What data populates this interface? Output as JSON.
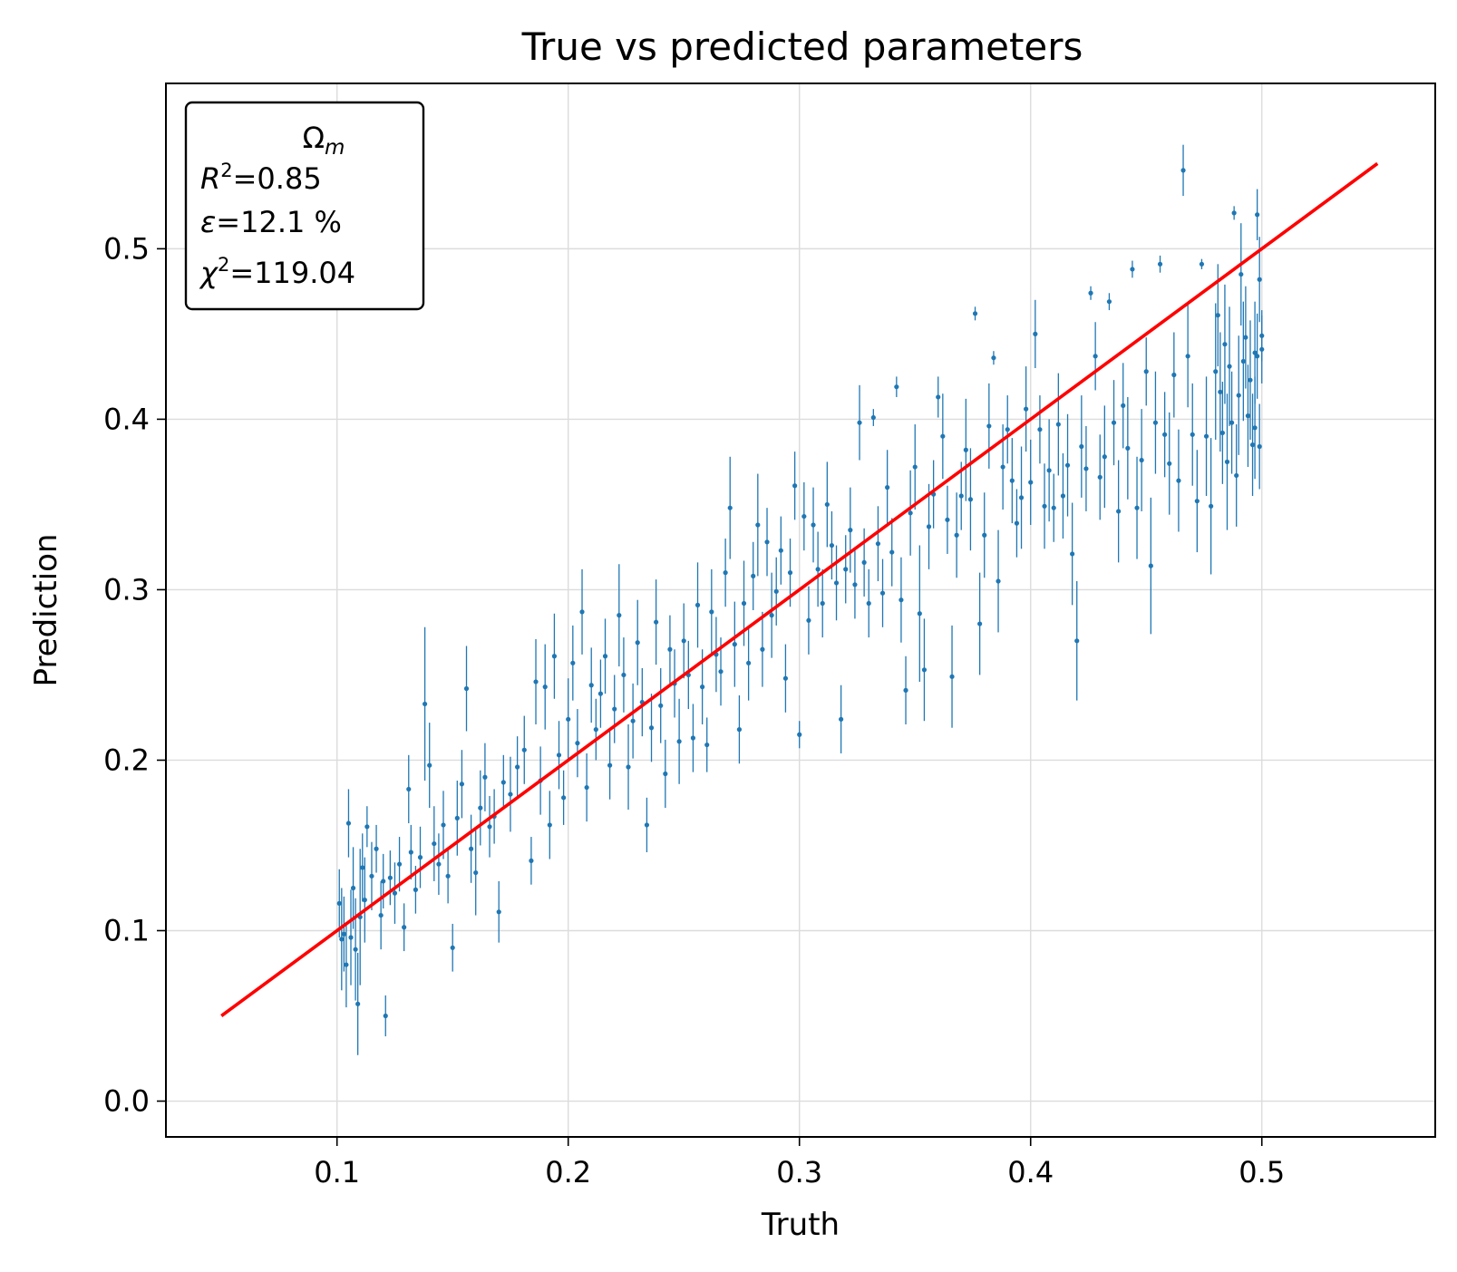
{
  "chart_data": {
    "type": "scatter",
    "title": "True vs predicted parameters",
    "xlabel": "Truth",
    "ylabel": "Prediction",
    "xlim": [
      0.026,
      0.575
    ],
    "ylim": [
      -0.021,
      0.597
    ],
    "xticks": [
      0.1,
      0.2,
      0.3,
      0.4,
      0.5
    ],
    "xtick_labels": [
      "0.1",
      "0.2",
      "0.3",
      "0.4",
      "0.5"
    ],
    "yticks": [
      0.0,
      0.1,
      0.2,
      0.3,
      0.4,
      0.5
    ],
    "ytick_labels": [
      "0.0",
      "0.1",
      "0.2",
      "0.3",
      "0.4",
      "0.5"
    ],
    "grid": true,
    "colors": {
      "points": "#1f77b4",
      "identity_line": "#ff0000"
    },
    "identity_line": {
      "x": [
        0.05,
        0.55
      ],
      "y": [
        0.05,
        0.55
      ]
    },
    "stats_box": {
      "position": "top-left",
      "parameter": "Ω",
      "parameter_sub": "m",
      "r2_label": "R",
      "r2_value": "=0.85",
      "eps_label": "ε",
      "eps_value": "=12.1 %",
      "chi2_label": "χ",
      "chi2_value": "=119.04",
      "superscript": "2"
    },
    "points": [
      [
        0.101,
        0.116,
        0.02
      ],
      [
        0.102,
        0.095,
        0.03
      ],
      [
        0.103,
        0.098,
        0.022
      ],
      [
        0.104,
        0.08,
        0.025
      ],
      [
        0.105,
        0.163,
        0.02
      ],
      [
        0.106,
        0.096,
        0.028
      ],
      [
        0.107,
        0.125,
        0.024
      ],
      [
        0.108,
        0.089,
        0.03
      ],
      [
        0.109,
        0.057,
        0.03
      ],
      [
        0.11,
        0.108,
        0.04
      ],
      [
        0.111,
        0.137,
        0.02
      ],
      [
        0.112,
        0.118,
        0.025
      ],
      [
        0.113,
        0.161,
        0.012
      ],
      [
        0.115,
        0.132,
        0.02
      ],
      [
        0.117,
        0.148,
        0.014
      ],
      [
        0.119,
        0.109,
        0.02
      ],
      [
        0.12,
        0.129,
        0.016
      ],
      [
        0.121,
        0.05,
        0.012
      ],
      [
        0.123,
        0.131,
        0.016
      ],
      [
        0.125,
        0.122,
        0.018
      ],
      [
        0.127,
        0.139,
        0.016
      ],
      [
        0.129,
        0.102,
        0.014
      ],
      [
        0.131,
        0.183,
        0.02
      ],
      [
        0.132,
        0.146,
        0.016
      ],
      [
        0.134,
        0.124,
        0.014
      ],
      [
        0.136,
        0.143,
        0.018
      ],
      [
        0.138,
        0.233,
        0.045
      ],
      [
        0.14,
        0.197,
        0.025
      ],
      [
        0.142,
        0.151,
        0.022
      ],
      [
        0.144,
        0.139,
        0.018
      ],
      [
        0.146,
        0.162,
        0.02
      ],
      [
        0.148,
        0.132,
        0.016
      ],
      [
        0.15,
        0.09,
        0.014
      ],
      [
        0.152,
        0.166,
        0.022
      ],
      [
        0.154,
        0.186,
        0.02
      ],
      [
        0.156,
        0.242,
        0.025
      ],
      [
        0.158,
        0.148,
        0.02
      ],
      [
        0.16,
        0.134,
        0.025
      ],
      [
        0.162,
        0.172,
        0.022
      ],
      [
        0.164,
        0.19,
        0.02
      ],
      [
        0.166,
        0.161,
        0.018
      ],
      [
        0.168,
        0.167,
        0.016
      ],
      [
        0.17,
        0.111,
        0.018
      ],
      [
        0.172,
        0.187,
        0.016
      ],
      [
        0.175,
        0.18,
        0.022
      ],
      [
        0.178,
        0.196,
        0.018
      ],
      [
        0.181,
        0.206,
        0.02
      ],
      [
        0.184,
        0.141,
        0.014
      ],
      [
        0.186,
        0.246,
        0.025
      ],
      [
        0.188,
        0.188,
        0.02
      ],
      [
        0.19,
        0.243,
        0.025
      ],
      [
        0.192,
        0.162,
        0.02
      ],
      [
        0.194,
        0.261,
        0.025
      ],
      [
        0.196,
        0.203,
        0.02
      ],
      [
        0.198,
        0.178,
        0.016
      ],
      [
        0.2,
        0.224,
        0.024
      ],
      [
        0.202,
        0.257,
        0.022
      ],
      [
        0.204,
        0.21,
        0.02
      ],
      [
        0.206,
        0.287,
        0.025
      ],
      [
        0.208,
        0.184,
        0.02
      ],
      [
        0.21,
        0.244,
        0.022
      ],
      [
        0.212,
        0.218,
        0.018
      ],
      [
        0.214,
        0.239,
        0.02
      ],
      [
        0.216,
        0.261,
        0.022
      ],
      [
        0.218,
        0.197,
        0.02
      ],
      [
        0.22,
        0.23,
        0.02
      ],
      [
        0.222,
        0.285,
        0.03
      ],
      [
        0.224,
        0.25,
        0.022
      ],
      [
        0.226,
        0.196,
        0.025
      ],
      [
        0.228,
        0.223,
        0.022
      ],
      [
        0.23,
        0.269,
        0.025
      ],
      [
        0.232,
        0.234,
        0.02
      ],
      [
        0.234,
        0.162,
        0.016
      ],
      [
        0.236,
        0.219,
        0.02
      ],
      [
        0.238,
        0.281,
        0.025
      ],
      [
        0.24,
        0.232,
        0.022
      ],
      [
        0.242,
        0.192,
        0.02
      ],
      [
        0.244,
        0.265,
        0.02
      ],
      [
        0.246,
        0.245,
        0.02
      ],
      [
        0.248,
        0.211,
        0.025
      ],
      [
        0.25,
        0.27,
        0.022
      ],
      [
        0.252,
        0.25,
        0.02
      ],
      [
        0.254,
        0.213,
        0.02
      ],
      [
        0.256,
        0.291,
        0.025
      ],
      [
        0.258,
        0.243,
        0.022
      ],
      [
        0.26,
        0.209,
        0.016
      ],
      [
        0.262,
        0.287,
        0.025
      ],
      [
        0.264,
        0.262,
        0.022
      ],
      [
        0.266,
        0.252,
        0.02
      ],
      [
        0.268,
        0.31,
        0.02
      ],
      [
        0.27,
        0.348,
        0.03
      ],
      [
        0.272,
        0.268,
        0.025
      ],
      [
        0.274,
        0.218,
        0.02
      ],
      [
        0.276,
        0.292,
        0.025
      ],
      [
        0.278,
        0.257,
        0.022
      ],
      [
        0.28,
        0.308,
        0.02
      ],
      [
        0.282,
        0.338,
        0.03
      ],
      [
        0.284,
        0.265,
        0.022
      ],
      [
        0.286,
        0.328,
        0.02
      ],
      [
        0.288,
        0.285,
        0.025
      ],
      [
        0.29,
        0.299,
        0.02
      ],
      [
        0.292,
        0.323,
        0.02
      ],
      [
        0.294,
        0.248,
        0.02
      ],
      [
        0.296,
        0.31,
        0.02
      ],
      [
        0.298,
        0.361,
        0.02
      ],
      [
        0.3,
        0.215,
        0.008
      ],
      [
        0.302,
        0.343,
        0.02
      ],
      [
        0.304,
        0.282,
        0.02
      ],
      [
        0.306,
        0.338,
        0.022
      ],
      [
        0.308,
        0.312,
        0.022
      ],
      [
        0.31,
        0.292,
        0.02
      ],
      [
        0.312,
        0.35,
        0.025
      ],
      [
        0.314,
        0.326,
        0.02
      ],
      [
        0.316,
        0.304,
        0.022
      ],
      [
        0.318,
        0.224,
        0.02
      ],
      [
        0.32,
        0.312,
        0.02
      ],
      [
        0.322,
        0.335,
        0.025
      ],
      [
        0.324,
        0.303,
        0.02
      ],
      [
        0.326,
        0.398,
        0.022
      ],
      [
        0.328,
        0.316,
        0.02
      ],
      [
        0.33,
        0.292,
        0.02
      ],
      [
        0.332,
        0.401,
        0.005
      ],
      [
        0.334,
        0.327,
        0.022
      ],
      [
        0.336,
        0.298,
        0.02
      ],
      [
        0.338,
        0.36,
        0.022
      ],
      [
        0.34,
        0.322,
        0.02
      ],
      [
        0.342,
        0.419,
        0.006
      ],
      [
        0.344,
        0.294,
        0.025
      ],
      [
        0.346,
        0.241,
        0.02
      ],
      [
        0.348,
        0.345,
        0.025
      ],
      [
        0.35,
        0.372,
        0.025
      ],
      [
        0.352,
        0.286,
        0.04
      ],
      [
        0.354,
        0.253,
        0.03
      ],
      [
        0.356,
        0.337,
        0.025
      ],
      [
        0.358,
        0.356,
        0.02
      ],
      [
        0.36,
        0.413,
        0.012
      ],
      [
        0.362,
        0.39,
        0.025
      ],
      [
        0.364,
        0.341,
        0.02
      ],
      [
        0.366,
        0.249,
        0.03
      ],
      [
        0.368,
        0.332,
        0.025
      ],
      [
        0.37,
        0.355,
        0.02
      ],
      [
        0.372,
        0.382,
        0.03
      ],
      [
        0.374,
        0.353,
        0.03
      ],
      [
        0.376,
        0.462,
        0.004
      ],
      [
        0.378,
        0.28,
        0.03
      ],
      [
        0.38,
        0.332,
        0.025
      ],
      [
        0.382,
        0.396,
        0.025
      ],
      [
        0.384,
        0.436,
        0.004
      ],
      [
        0.386,
        0.305,
        0.03
      ],
      [
        0.388,
        0.372,
        0.025
      ],
      [
        0.39,
        0.394,
        0.02
      ],
      [
        0.392,
        0.364,
        0.025
      ],
      [
        0.394,
        0.339,
        0.02
      ],
      [
        0.396,
        0.354,
        0.03
      ],
      [
        0.398,
        0.406,
        0.025
      ],
      [
        0.4,
        0.363,
        0.025
      ],
      [
        0.402,
        0.45,
        0.02
      ],
      [
        0.404,
        0.394,
        0.02
      ],
      [
        0.406,
        0.349,
        0.025
      ],
      [
        0.408,
        0.37,
        0.03
      ],
      [
        0.41,
        0.348,
        0.02
      ],
      [
        0.412,
        0.397,
        0.03
      ],
      [
        0.414,
        0.355,
        0.025
      ],
      [
        0.416,
        0.373,
        0.03
      ],
      [
        0.418,
        0.321,
        0.03
      ],
      [
        0.42,
        0.27,
        0.035
      ],
      [
        0.422,
        0.384,
        0.03
      ],
      [
        0.424,
        0.371,
        0.025
      ],
      [
        0.426,
        0.474,
        0.004
      ],
      [
        0.428,
        0.437,
        0.02
      ],
      [
        0.43,
        0.366,
        0.025
      ],
      [
        0.432,
        0.378,
        0.03
      ],
      [
        0.434,
        0.469,
        0.005
      ],
      [
        0.436,
        0.398,
        0.025
      ],
      [
        0.438,
        0.346,
        0.03
      ],
      [
        0.44,
        0.408,
        0.025
      ],
      [
        0.442,
        0.383,
        0.03
      ],
      [
        0.444,
        0.488,
        0.005
      ],
      [
        0.446,
        0.348,
        0.03
      ],
      [
        0.448,
        0.376,
        0.03
      ],
      [
        0.45,
        0.428,
        0.02
      ],
      [
        0.452,
        0.314,
        0.04
      ],
      [
        0.454,
        0.398,
        0.03
      ],
      [
        0.456,
        0.491,
        0.005
      ],
      [
        0.458,
        0.391,
        0.025
      ],
      [
        0.46,
        0.374,
        0.03
      ],
      [
        0.462,
        0.426,
        0.025
      ],
      [
        0.464,
        0.364,
        0.03
      ],
      [
        0.466,
        0.546,
        0.015
      ],
      [
        0.468,
        0.437,
        0.03
      ],
      [
        0.47,
        0.391,
        0.03
      ],
      [
        0.472,
        0.352,
        0.03
      ],
      [
        0.474,
        0.491,
        0.003
      ],
      [
        0.476,
        0.39,
        0.035
      ],
      [
        0.478,
        0.349,
        0.04
      ],
      [
        0.48,
        0.428,
        0.04
      ],
      [
        0.481,
        0.461,
        0.03
      ],
      [
        0.482,
        0.416,
        0.035
      ],
      [
        0.483,
        0.392,
        0.03
      ],
      [
        0.484,
        0.444,
        0.035
      ],
      [
        0.485,
        0.375,
        0.04
      ],
      [
        0.486,
        0.431,
        0.035
      ],
      [
        0.487,
        0.398,
        0.03
      ],
      [
        0.488,
        0.521,
        0.004
      ],
      [
        0.489,
        0.367,
        0.03
      ],
      [
        0.49,
        0.414,
        0.035
      ],
      [
        0.491,
        0.485,
        0.03
      ],
      [
        0.492,
        0.434,
        0.035
      ],
      [
        0.493,
        0.448,
        0.03
      ],
      [
        0.494,
        0.402,
        0.03
      ],
      [
        0.495,
        0.423,
        0.035
      ],
      [
        0.496,
        0.385,
        0.03
      ],
      [
        0.497,
        0.439,
        0.03
      ],
      [
        0.498,
        0.52,
        0.015
      ],
      [
        0.499,
        0.482,
        0.025
      ],
      [
        0.5,
        0.449,
        0.015
      ],
      [
        0.499,
        0.384,
        0.025
      ],
      [
        0.5,
        0.441,
        0.02
      ],
      [
        0.497,
        0.395,
        0.03
      ],
      [
        0.498,
        0.437,
        0.025
      ]
    ]
  }
}
